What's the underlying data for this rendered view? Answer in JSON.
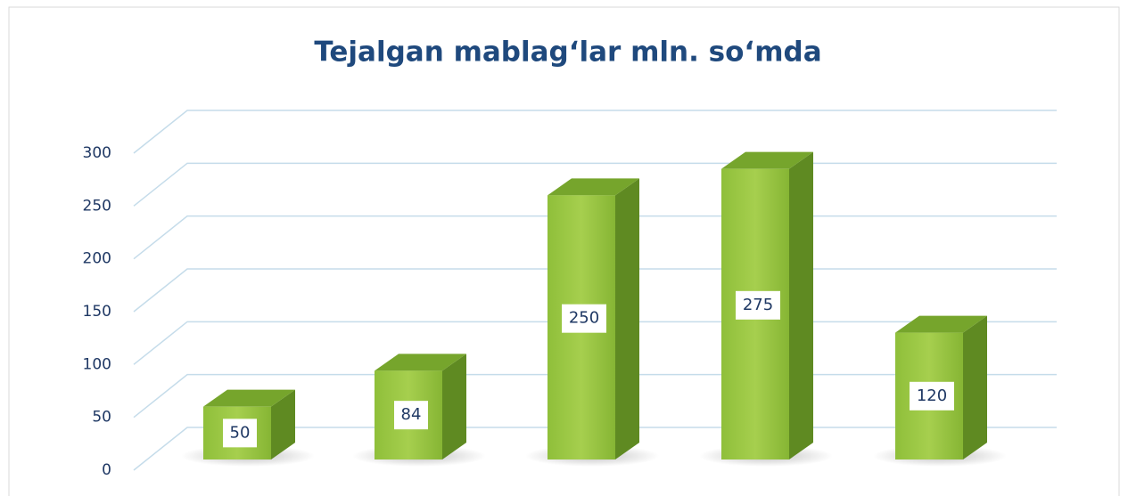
{
  "chart_data": {
    "type": "bar3d",
    "title": "Tejalgan mablag‘lar mln. so‘mda",
    "categories": [
      null,
      null,
      null,
      null,
      null
    ],
    "values": [
      50,
      84,
      250,
      275,
      120
    ],
    "color": "#8dc03c",
    "ylim": [
      0,
      300
    ],
    "yticks": [
      0,
      50,
      100,
      150,
      200,
      250,
      300
    ],
    "grid": true
  }
}
